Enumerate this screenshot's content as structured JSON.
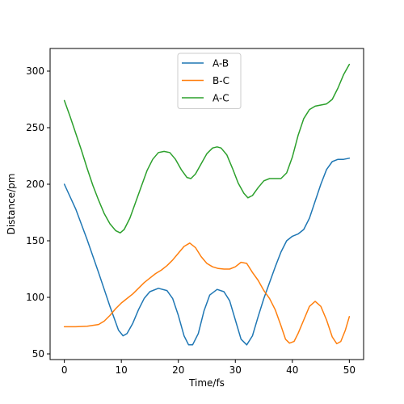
{
  "chart_data": {
    "type": "line",
    "xlabel": "Time/fs",
    "ylabel": "Distance/pm",
    "xlim": [
      -2.5,
      52.5
    ],
    "ylim": [
      45,
      320
    ],
    "xticks": [
      0,
      10,
      20,
      30,
      40,
      50
    ],
    "yticks": [
      50,
      100,
      150,
      200,
      250,
      300
    ],
    "grid": false,
    "legend": "top-center",
    "series": [
      {
        "name": "A-B",
        "color": "#1f77b4",
        "points": [
          [
            0,
            200
          ],
          [
            2,
            178
          ],
          [
            4,
            151
          ],
          [
            6,
            122
          ],
          [
            8,
            92
          ],
          [
            9.5,
            71
          ],
          [
            10.3,
            66
          ],
          [
            11,
            68
          ],
          [
            12,
            77
          ],
          [
            13,
            89
          ],
          [
            14,
            99
          ],
          [
            15,
            105
          ],
          [
            16.5,
            108
          ],
          [
            18,
            106
          ],
          [
            19,
            99
          ],
          [
            20,
            84
          ],
          [
            21,
            66
          ],
          [
            21.8,
            58
          ],
          [
            22.5,
            58
          ],
          [
            23.5,
            68
          ],
          [
            24.5,
            88
          ],
          [
            25.5,
            102
          ],
          [
            26.8,
            107
          ],
          [
            28,
            105
          ],
          [
            29,
            97
          ],
          [
            30,
            80
          ],
          [
            31,
            63
          ],
          [
            32,
            58
          ],
          [
            33,
            66
          ],
          [
            34,
            83
          ],
          [
            35,
            99
          ],
          [
            36,
            113
          ],
          [
            37,
            127
          ],
          [
            38,
            140
          ],
          [
            39,
            150
          ],
          [
            40,
            154
          ],
          [
            41,
            156
          ],
          [
            42,
            160
          ],
          [
            43,
            170
          ],
          [
            44,
            185
          ],
          [
            45,
            200
          ],
          [
            46,
            213
          ],
          [
            47,
            220
          ],
          [
            48,
            222
          ],
          [
            49,
            222
          ],
          [
            50,
            223
          ]
        ]
      },
      {
        "name": "B-C",
        "color": "#ff7f0e",
        "points": [
          [
            0,
            74
          ],
          [
            2,
            74
          ],
          [
            4,
            74.5
          ],
          [
            6,
            76
          ],
          [
            7,
            79
          ],
          [
            8,
            84
          ],
          [
            9,
            90
          ],
          [
            10,
            95
          ],
          [
            11,
            99
          ],
          [
            12,
            103
          ],
          [
            13,
            108
          ],
          [
            14,
            113
          ],
          [
            15,
            117
          ],
          [
            16,
            121
          ],
          [
            17,
            124
          ],
          [
            18,
            128
          ],
          [
            19,
            133
          ],
          [
            20,
            139
          ],
          [
            21,
            145
          ],
          [
            22,
            148
          ],
          [
            23,
            144
          ],
          [
            24,
            136
          ],
          [
            25,
            130
          ],
          [
            26,
            127
          ],
          [
            27,
            125.5
          ],
          [
            28,
            125
          ],
          [
            29,
            125
          ],
          [
            30,
            127
          ],
          [
            31,
            131
          ],
          [
            32,
            130
          ],
          [
            33,
            122
          ],
          [
            34,
            115
          ],
          [
            35,
            106
          ],
          [
            36,
            99
          ],
          [
            37,
            89
          ],
          [
            38,
            75
          ],
          [
            38.8,
            63
          ],
          [
            39.5,
            59.5
          ],
          [
            40.3,
            61
          ],
          [
            41,
            68
          ],
          [
            42,
            80
          ],
          [
            43,
            92
          ],
          [
            44,
            96.5
          ],
          [
            45,
            92
          ],
          [
            46,
            80
          ],
          [
            47,
            65
          ],
          [
            47.8,
            59
          ],
          [
            48.5,
            61
          ],
          [
            49.3,
            71
          ],
          [
            50,
            83
          ]
        ]
      },
      {
        "name": "A-C",
        "color": "#2ca02c",
        "points": [
          [
            0,
            274
          ],
          [
            1,
            260
          ],
          [
            2,
            245
          ],
          [
            3,
            230
          ],
          [
            4,
            214
          ],
          [
            5,
            199
          ],
          [
            6,
            186
          ],
          [
            7,
            174
          ],
          [
            8,
            165
          ],
          [
            9,
            159
          ],
          [
            9.8,
            157
          ],
          [
            10.5,
            160
          ],
          [
            11.5,
            170
          ],
          [
            12.5,
            184
          ],
          [
            13.5,
            198
          ],
          [
            14.5,
            212
          ],
          [
            15.5,
            222
          ],
          [
            16.5,
            228
          ],
          [
            17.5,
            229
          ],
          [
            18.5,
            228
          ],
          [
            19.5,
            222
          ],
          [
            20.5,
            213
          ],
          [
            21.5,
            206
          ],
          [
            22.2,
            205
          ],
          [
            23,
            209
          ],
          [
            24,
            218
          ],
          [
            25,
            227
          ],
          [
            26,
            232
          ],
          [
            26.8,
            233
          ],
          [
            27.5,
            232
          ],
          [
            28.5,
            226
          ],
          [
            29.5,
            214
          ],
          [
            30.5,
            201
          ],
          [
            31.5,
            192
          ],
          [
            32.2,
            188
          ],
          [
            33,
            190
          ],
          [
            34,
            197
          ],
          [
            35,
            203
          ],
          [
            36,
            205
          ],
          [
            37,
            205
          ],
          [
            38,
            205
          ],
          [
            39,
            210
          ],
          [
            40,
            224
          ],
          [
            41,
            243
          ],
          [
            42,
            258
          ],
          [
            43,
            266
          ],
          [
            44,
            269
          ],
          [
            45,
            270
          ],
          [
            46,
            271
          ],
          [
            47,
            275
          ],
          [
            48,
            285
          ],
          [
            49,
            297
          ],
          [
            50,
            306
          ]
        ]
      }
    ]
  }
}
